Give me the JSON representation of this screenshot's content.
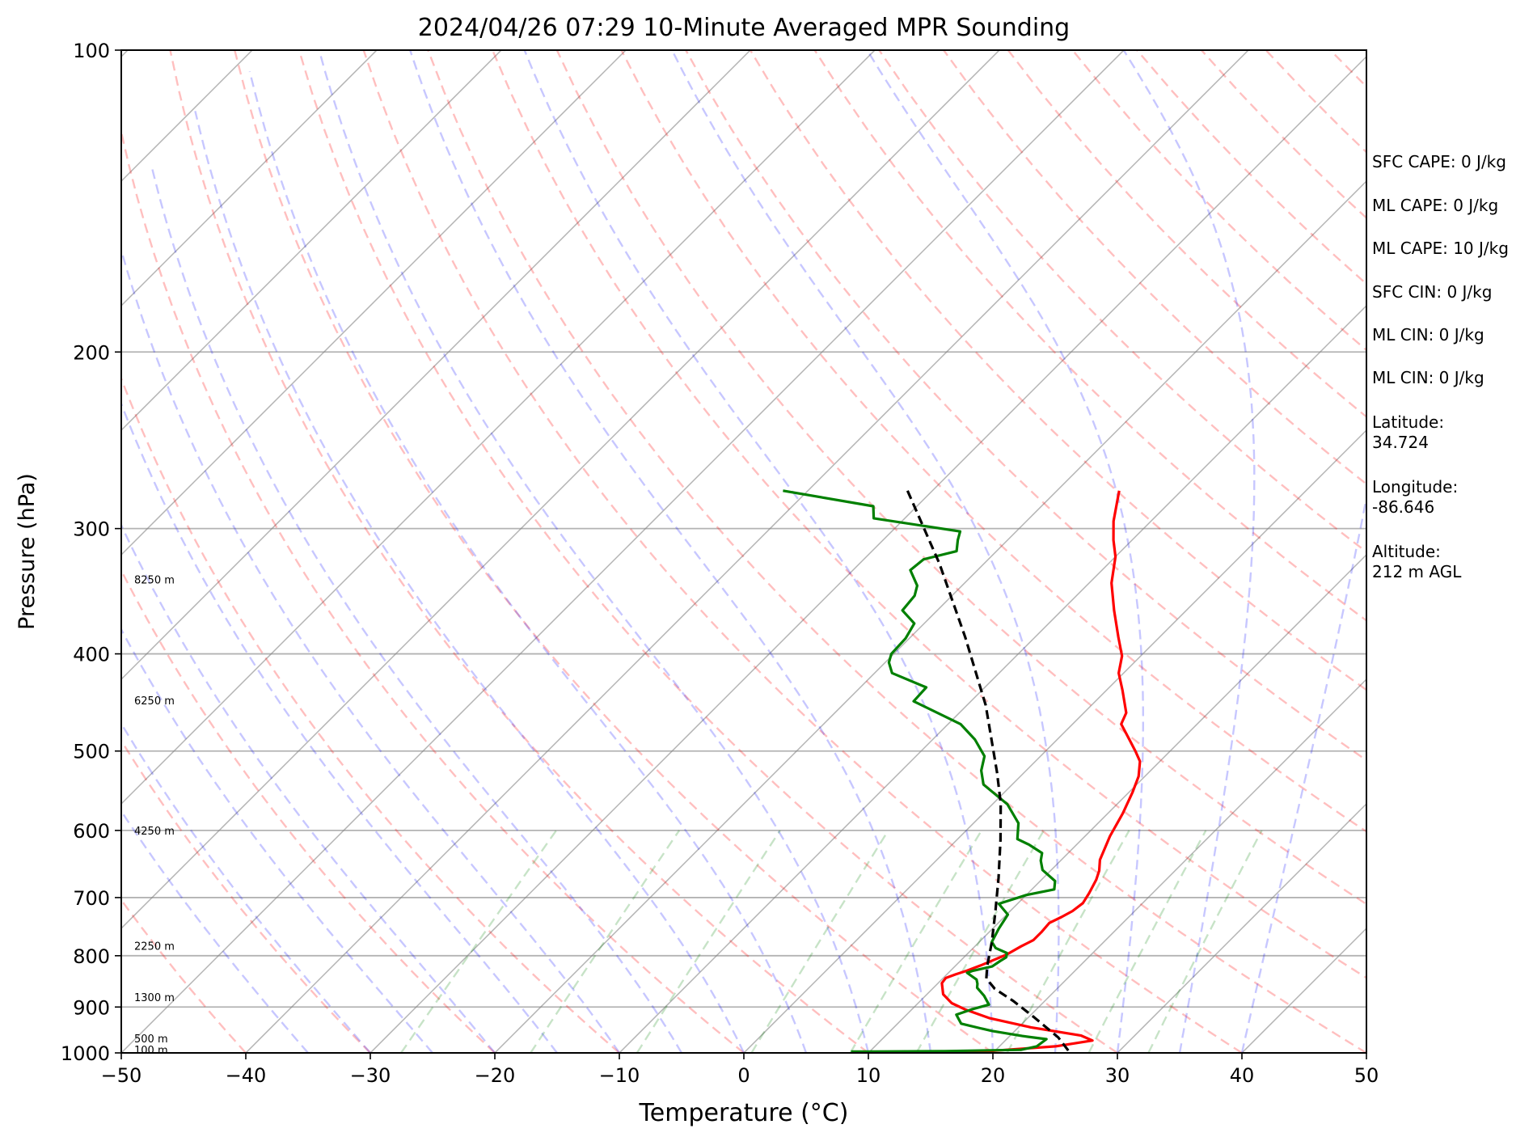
{
  "chart_data": {
    "type": "skew-t",
    "title": "2024/04/26 07:29 10-Minute Averaged MPR Sounding",
    "xlabel": "Temperature (°C)",
    "ylabel": "Pressure (hPa)",
    "xlim": [
      -50,
      50
    ],
    "ylim": [
      1000,
      100
    ],
    "y_scale": "log",
    "skew_degrees": 45,
    "grid": true,
    "x_ticks": [
      "−50",
      "−40",
      "−30",
      "−20",
      "−10",
      "0",
      "10",
      "20",
      "30",
      "40",
      "50"
    ],
    "x_tick_values": [
      -50,
      -40,
      -30,
      -20,
      -10,
      0,
      10,
      20,
      30,
      40,
      50
    ],
    "y_ticks": [
      100,
      200,
      300,
      400,
      500,
      600,
      700,
      800,
      900,
      1000
    ],
    "height_labels": [
      {
        "text": "8250 m",
        "p": 337
      },
      {
        "text": "6250 m",
        "p": 445
      },
      {
        "text": "4250 m",
        "p": 600
      },
      {
        "text": "2250 m",
        "p": 782
      },
      {
        "text": "1300 m",
        "p": 880
      },
      {
        "text": "500 m",
        "p": 967
      },
      {
        "text": "100 m",
        "p": 993
      }
    ],
    "series": [
      {
        "color": "#ff0000",
        "points": [
          [
            -15.0,
            275
          ],
          [
            -13.0,
            295
          ],
          [
            -11.5,
            308
          ],
          [
            -10.0,
            320
          ],
          [
            -8.2,
            340
          ],
          [
            -5.8,
            362
          ],
          [
            -3.3,
            385
          ],
          [
            -1.5,
            402
          ],
          [
            -0.4,
            418
          ],
          [
            1.3,
            435
          ],
          [
            3.4,
            458
          ],
          [
            3.9,
            470
          ],
          [
            5.8,
            487
          ],
          [
            7.2,
            500
          ],
          [
            8.4,
            512
          ],
          [
            9.5,
            530
          ],
          [
            10.3,
            550
          ],
          [
            11.2,
            577
          ],
          [
            12.0,
            608
          ],
          [
            13.1,
            642
          ],
          [
            13.9,
            658
          ],
          [
            14.4,
            672
          ],
          [
            14.9,
            693
          ],
          [
            15.2,
            709
          ],
          [
            15.0,
            722
          ],
          [
            14.6,
            732
          ],
          [
            14.1,
            742
          ],
          [
            14.2,
            758
          ],
          [
            14.2,
            772
          ],
          [
            13.7,
            783
          ],
          [
            13.2,
            798
          ],
          [
            12.6,
            808
          ],
          [
            12.0,
            818
          ],
          [
            11.3,
            828
          ],
          [
            10.7,
            835
          ],
          [
            10.2,
            842
          ],
          [
            10.3,
            852
          ],
          [
            11.3,
            874
          ],
          [
            12.7,
            892
          ],
          [
            14.4,
            906
          ],
          [
            16.9,
            923
          ],
          [
            21.0,
            943
          ],
          [
            25.7,
            961
          ],
          [
            27.0,
            972
          ],
          [
            24.5,
            985
          ],
          [
            19.5,
            996
          ],
          [
            17.0,
            1000
          ]
        ]
      },
      {
        "color": "#008000",
        "points": [
          [
            -42.0,
            275
          ],
          [
            -33.5,
            285
          ],
          [
            -32.5,
            293
          ],
          [
            -24.5,
            302
          ],
          [
            -24.0,
            308
          ],
          [
            -23.2,
            316
          ],
          [
            -25.2,
            322
          ],
          [
            -25.4,
            330
          ],
          [
            -23.6,
            342
          ],
          [
            -23.0,
            350
          ],
          [
            -22.8,
            362
          ],
          [
            -20.8,
            373
          ],
          [
            -20.3,
            386
          ],
          [
            -20.2,
            400
          ],
          [
            -19.7,
            408
          ],
          [
            -18.6,
            418
          ],
          [
            -14.7,
            432
          ],
          [
            -14.6,
            446
          ],
          [
            -9.0,
            470
          ],
          [
            -6.6,
            487
          ],
          [
            -4.5,
            506
          ],
          [
            -3.6,
            523
          ],
          [
            -2.3,
            540
          ],
          [
            1.2,
            565
          ],
          [
            3.6,
            590
          ],
          [
            4.8,
            612
          ],
          [
            6.2,
            620
          ],
          [
            7.9,
            632
          ],
          [
            8.4,
            643
          ],
          [
            9.3,
            657
          ],
          [
            11.2,
            674
          ],
          [
            11.8,
            687
          ],
          [
            10.0,
            696
          ],
          [
            8.5,
            710
          ],
          [
            10.1,
            728
          ],
          [
            10.5,
            752
          ],
          [
            11.0,
            775
          ],
          [
            11.8,
            786
          ],
          [
            13.1,
            795
          ],
          [
            13.4,
            803
          ],
          [
            13.2,
            810
          ],
          [
            13.0,
            820
          ],
          [
            11.8,
            828
          ],
          [
            11.5,
            832
          ],
          [
            12.8,
            845
          ],
          [
            13.2,
            853
          ],
          [
            13.5,
            861
          ],
          [
            14.7,
            877
          ],
          [
            15.8,
            895
          ],
          [
            14.8,
            905
          ],
          [
            14.0,
            916
          ],
          [
            15.1,
            935
          ],
          [
            17.0,
            945
          ],
          [
            18.2,
            951
          ],
          [
            21.0,
            962
          ],
          [
            23.2,
            969
          ],
          [
            23.0,
            985
          ],
          [
            22.0,
            993
          ],
          [
            16.0,
            996
          ],
          [
            10.0,
            997
          ],
          [
            8.5,
            997
          ]
        ]
      },
      {
        "color": "#000000",
        "dashed": true,
        "points": [
          [
            -32.0,
            275
          ],
          [
            -23.6,
            325
          ],
          [
            -15.6,
            385
          ],
          [
            -8.5,
            450
          ],
          [
            -2.2,
            525
          ],
          [
            0.6,
            564
          ],
          [
            3.5,
            613
          ],
          [
            6.4,
            669
          ],
          [
            8.9,
            724
          ],
          [
            11.0,
            775
          ],
          [
            12.6,
            820
          ],
          [
            13.5,
            843
          ],
          [
            15.0,
            863
          ],
          [
            17.5,
            888
          ],
          [
            20.5,
            922
          ],
          [
            24.0,
            965
          ],
          [
            26.2,
            1000
          ]
        ]
      }
    ],
    "side_text": {
      "sfc_cape": "SFC CAPE: 0 J/kg",
      "ml_cape_1": "ML CAPE: 0 J/kg",
      "ml_cape_2": "ML CAPE: 10 J/kg",
      "sfc_cin": "SFC CIN: 0 J/kg",
      "ml_cin_1": "ML CIN: 0 J/kg",
      "ml_cin_2": "ML CIN: 0 J/kg",
      "latitude_label": "Latitude:",
      "latitude_value": "34.724",
      "longitude_label": "Longitude:",
      "longitude_value": "-86.646",
      "altitude_label": "Altitude:",
      "altitude_value": "212 m AGL"
    },
    "colors": {
      "dry_adiabat": "#ff0000",
      "moist_adiabat": "#0000ff",
      "mixing_ratio": "#008000",
      "isotherm": "#808080",
      "temperature": "#ff0000",
      "dewpoint": "#008000",
      "parcel": "#000000"
    }
  }
}
